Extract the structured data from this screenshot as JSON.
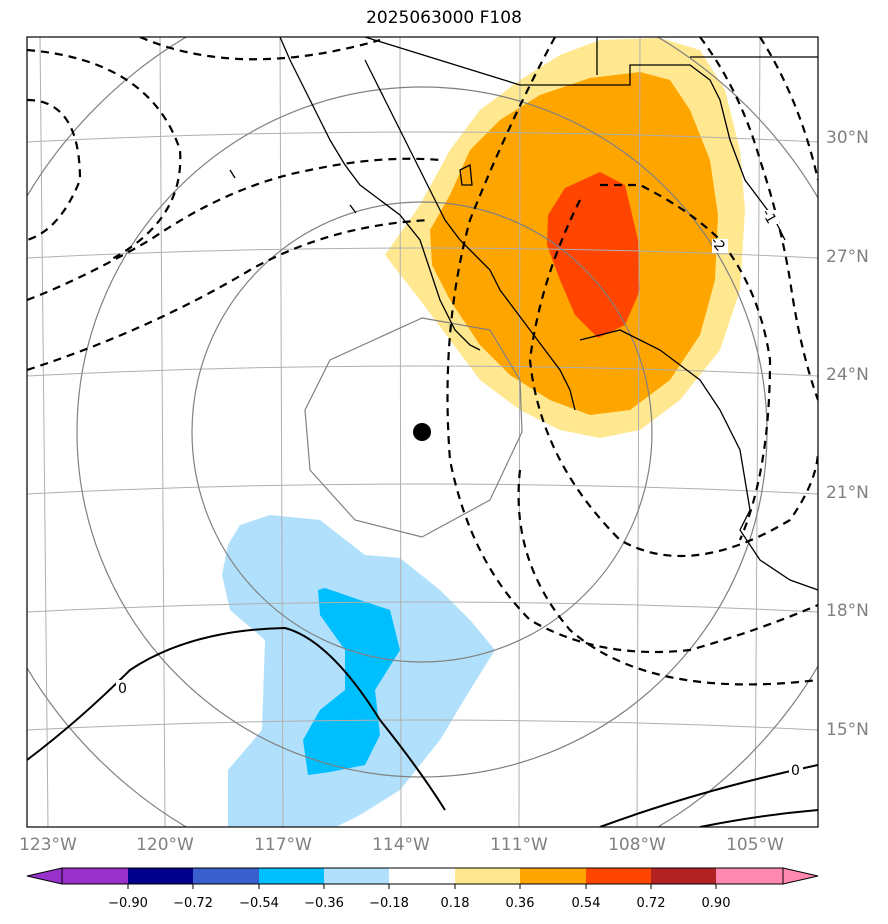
{
  "title": "2025063000 F108",
  "map": {
    "lat_labels": [
      "30°N",
      "27°N",
      "24°N",
      "21°N",
      "18°N",
      "15°N"
    ],
    "lon_labels": [
      "123°W",
      "120°W",
      "117°W",
      "114°W",
      "111°W",
      "108°W",
      "105°W"
    ],
    "storm_center": {
      "lon": -113.5,
      "lat": 22.5
    },
    "contour_labels": [
      "0",
      "0",
      "-1",
      "-2"
    ],
    "colors": {
      "positive_light": "#ffe88f",
      "positive_mid": "#ffa500",
      "positive_strong": "#ff4500",
      "negative_light": "#b0e0fb",
      "negative_mid": "#00bfff",
      "grid": "#b0b0b0",
      "range_rings": "#808080"
    }
  },
  "colorbar": {
    "ticks": [
      "−0.90",
      "−0.72",
      "−0.54",
      "−0.36",
      "−0.18",
      "0.18",
      "0.36",
      "0.54",
      "0.72",
      "0.90"
    ],
    "colors": [
      "#9932cc",
      "#00008b",
      "#3a5fcd",
      "#00bfff",
      "#b0e0fb",
      "#ffffff",
      "#ffe88f",
      "#ffa500",
      "#ff4500",
      "#b22222",
      "#ff88b0"
    ]
  }
}
